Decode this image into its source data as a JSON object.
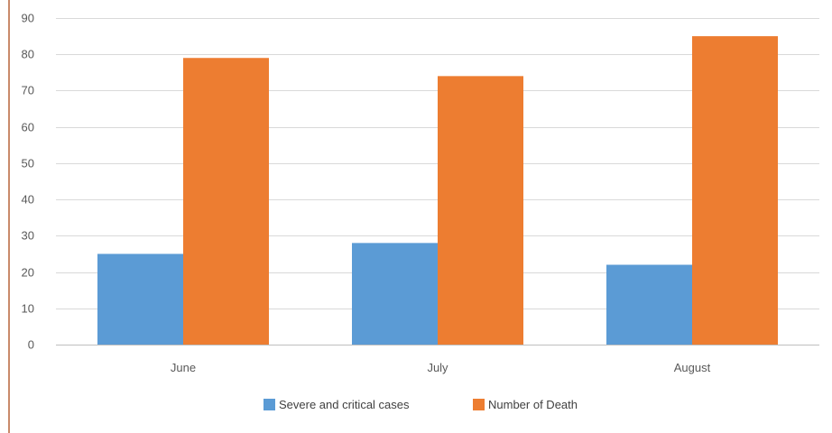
{
  "chart_data": {
    "type": "bar",
    "categories": [
      "June",
      "July",
      "August"
    ],
    "series": [
      {
        "name": "Severe and critical  cases",
        "values": [
          25,
          28,
          22
        ],
        "color": "#5b9bd5"
      },
      {
        "name": "Number of Death",
        "values": [
          79,
          74,
          85
        ],
        "color": "#ed7d31"
      }
    ],
    "ylim": [
      0,
      90
    ],
    "yticks": [
      0,
      10,
      20,
      30,
      40,
      50,
      60,
      70,
      80,
      90
    ],
    "grid": true,
    "legend_position": "bottom",
    "gridline_color": "#d9d9d9",
    "axis_color": "#bfbfbf"
  }
}
